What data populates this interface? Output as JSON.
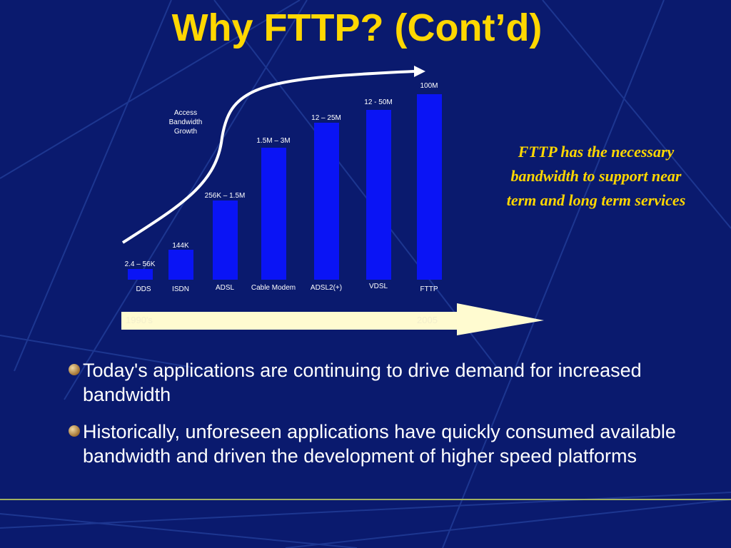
{
  "title": "Why FTTP? (Cont’d)",
  "diagram": {
    "curve_label": "Access Bandwidth Growth",
    "bars": [
      {
        "category": "DDS",
        "label": "2.4 – 56K"
      },
      {
        "category": "ISDN",
        "label": "144K"
      },
      {
        "category": "ADSL",
        "label": "256K – 1.5M"
      },
      {
        "category": "Cable Modem",
        "label": "1.5M – 3M"
      },
      {
        "category": "ADSL2(+)",
        "label": "12 – 25M"
      },
      {
        "category": "VDSL",
        "label": "12 - 50M"
      },
      {
        "category": "FTTP",
        "label": "100M"
      }
    ],
    "timeline": {
      "start": "1990's",
      "end": "2005"
    }
  },
  "callout": "FTTP has the necessary bandwidth to support near term and long term services",
  "bullets": [
    "Today's applications are continuing to drive demand for increased bandwidth",
    "Historically, unforeseen applications have quickly consumed available bandwidth and driven the development of higher speed platforms"
  ]
}
